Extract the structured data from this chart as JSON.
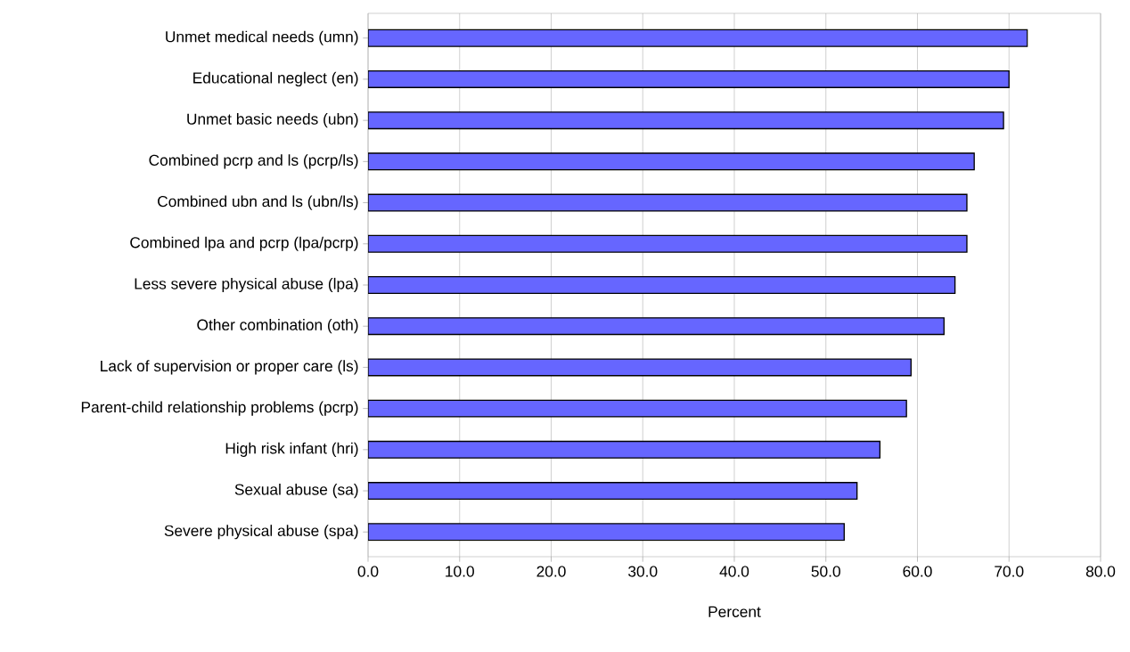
{
  "chart_data": {
    "type": "bar",
    "orientation": "horizontal",
    "xlabel": "Percent",
    "categories": [
      "Unmet medical needs (umn)",
      "Educational neglect (en)",
      "Unmet basic needs (ubn)",
      "Combined pcrp and ls (pcrp/ls)",
      "Combined ubn and ls (ubn/ls)",
      "Combined lpa and pcrp (lpa/pcrp)",
      "Less severe physical abuse (lpa)",
      "Other combination (oth)",
      "Lack of supervision or proper care (ls)",
      "Parent-child relationship problems (pcrp)",
      "High risk infant (hri)",
      "Sexual abuse (sa)",
      "Severe physical abuse (spa)"
    ],
    "values": [
      72.0,
      70.0,
      69.4,
      66.2,
      65.4,
      65.4,
      64.1,
      62.9,
      59.3,
      58.8,
      55.9,
      53.4,
      52.0
    ],
    "color": "#6666ff",
    "xlim": [
      0,
      80
    ],
    "xticks": [
      {
        "value": 0,
        "label": "0.0"
      },
      {
        "value": 10,
        "label": "10.0"
      },
      {
        "value": 20,
        "label": "20.0"
      },
      {
        "value": 30,
        "label": "30.0"
      },
      {
        "value": 40,
        "label": "40.0"
      },
      {
        "value": 50,
        "label": "50.0"
      },
      {
        "value": 60,
        "label": "60.0"
      },
      {
        "value": 70,
        "label": "70.0"
      },
      {
        "value": 80,
        "label": "80.0"
      }
    ],
    "grid": "x"
  }
}
